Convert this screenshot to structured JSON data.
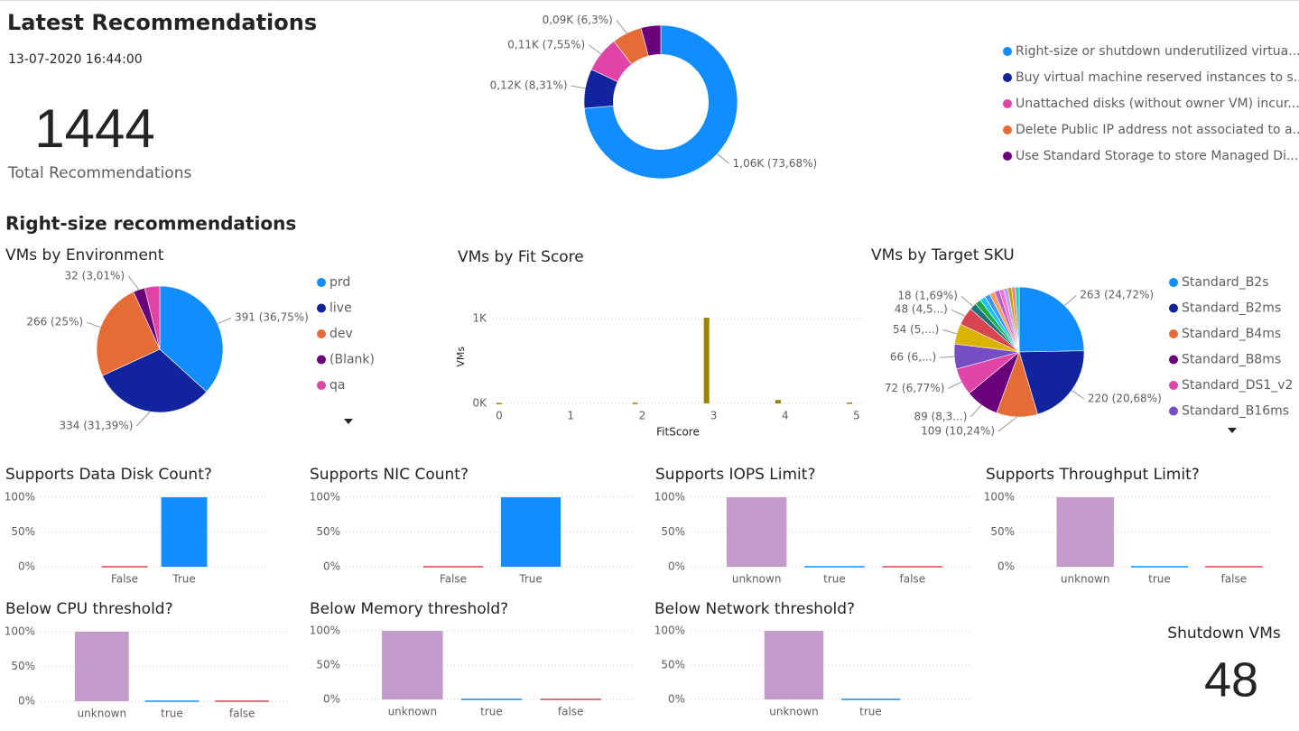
{
  "header": {
    "title": "Latest Recommendations",
    "timestamp": "13-07-2020 16:44:00",
    "section": "Right-size recommendations"
  },
  "cards": [
    {
      "value": "1444",
      "label": "Total Recommendations"
    },
    {
      "title": "Shutdown VMs",
      "value": "48"
    }
  ],
  "chart_data": [
    {
      "type": "pie",
      "hole": 0.62,
      "legend": "right",
      "categories": [
        "Right-size or shutdown underutilized virtua...",
        "Buy virtual machine reserved instances to s...",
        "Unattached disks (without owner VM) incur...",
        "Delete Public IP address not associated to a...",
        "Use Standard Storage to store Managed Di..."
      ],
      "values": [
        1064,
        120,
        109,
        91,
        60
      ],
      "value_labels": [
        "1,06K (73,68%)",
        "0,12K (8,31%)",
        "0,11K (7,55%)",
        "0,09K (6,3%)",
        null
      ],
      "colors": [
        "#118DFF",
        "#12239E",
        "#E044A7",
        "#E66C37",
        "#6B007B"
      ]
    },
    {
      "type": "pie",
      "title": "VMs by Environment",
      "legend": "right",
      "categories": [
        "prd",
        "live",
        "dev",
        "(Blank)",
        "qa"
      ],
      "values": [
        391,
        334,
        266,
        32,
        41
      ],
      "value_labels": [
        "391 (36,75%)",
        "334 (31,39%)",
        "266 (25%)",
        "32 (3,01%)",
        null
      ],
      "colors": [
        "#118DFF",
        "#12239E",
        "#E66C37",
        "#6B007B",
        "#E044A7"
      ]
    },
    {
      "type": "bar",
      "title": "VMs by Fit Score",
      "xlabel": "FitScore",
      "ylabel": "VMs",
      "x": [
        0,
        1.9,
        2.9,
        3.9,
        4.9
      ],
      "values": [
        5,
        8,
        1010,
        40,
        10
      ],
      "color": "#9C8100",
      "xlim": [
        0,
        5
      ],
      "xticks": [
        0,
        1,
        2,
        3,
        4,
        5
      ],
      "ylim": [
        0,
        1100
      ],
      "yticks": [
        {
          "value": 0,
          "label": "0K"
        },
        {
          "value": 1000,
          "label": "1K"
        }
      ],
      "grid": true
    },
    {
      "type": "pie",
      "title": "VMs by Target SKU",
      "legend": "right",
      "categories": [
        "Standard_B2s",
        "Standard_B2ms",
        "Standard_B4ms",
        "Standard_B8ms",
        "Standard_DS1_v2",
        "Standard_B16ms",
        null,
        null,
        null,
        null,
        null,
        null,
        null,
        null,
        null,
        null,
        null,
        null,
        null
      ],
      "values": [
        263,
        220,
        109,
        89,
        72,
        66,
        54,
        48,
        18,
        16,
        15,
        14,
        14,
        13,
        12,
        11,
        10,
        10,
        10
      ],
      "value_labels": [
        "263 (24,72%)",
        "220 (20,68%)",
        "109 (10,24%)",
        "89 (8,3...)",
        "72 (6,77%)",
        "66 (6,...)",
        "54 (5,...)",
        "48 (4,5...)",
        "18 (1,69%)",
        null,
        null,
        null,
        null,
        null,
        null,
        null,
        null,
        null,
        null
      ],
      "colors": [
        "#118DFF",
        "#12239E",
        "#E66C37",
        "#6B007B",
        "#E044A7",
        "#744EC2",
        "#D9B300",
        "#D64550",
        "#197278",
        "#1AAB40",
        "#15C6F4",
        "#4092FF",
        "#FFA058",
        "#BE5DC9",
        "#F472D0",
        "#B5A1FF",
        "#C4A200",
        "#FF8080",
        "#00DBBC"
      ]
    },
    {
      "type": "bar",
      "title": "Supports Data Disk Count?",
      "categories": [
        "False",
        "True"
      ],
      "values": [
        1,
        100
      ],
      "colors": [
        "#D64550",
        "#118DFF"
      ],
      "ylim": [
        0,
        100
      ],
      "yticks": [
        {
          "value": 0,
          "label": "0%"
        },
        {
          "value": 50,
          "label": "50%"
        },
        {
          "value": 100,
          "label": "100%"
        }
      ],
      "grid": true
    },
    {
      "type": "bar",
      "title": "Supports NIC Count?",
      "categories": [
        "False",
        "True"
      ],
      "values": [
        1,
        100
      ],
      "colors": [
        "#D64550",
        "#118DFF"
      ],
      "ylim": [
        0,
        100
      ],
      "yticks": [
        {
          "value": 0,
          "label": "0%"
        },
        {
          "value": 50,
          "label": "50%"
        },
        {
          "value": 100,
          "label": "100%"
        }
      ],
      "grid": true
    },
    {
      "type": "bar",
      "title": "Supports IOPS Limit?",
      "categories": [
        "unknown",
        "true",
        "false"
      ],
      "values": [
        100,
        1,
        1
      ],
      "colors": [
        "#C39BCB",
        "#118DFF",
        "#D64550"
      ],
      "ylim": [
        0,
        100
      ],
      "yticks": [
        {
          "value": 0,
          "label": "0%"
        },
        {
          "value": 50,
          "label": "50%"
        },
        {
          "value": 100,
          "label": "100%"
        }
      ],
      "grid": true
    },
    {
      "type": "bar",
      "title": "Supports Throughput Limit?",
      "categories": [
        "unknown",
        "true",
        "false"
      ],
      "values": [
        100,
        1,
        1
      ],
      "colors": [
        "#C39BCB",
        "#118DFF",
        "#D64550"
      ],
      "ylim": [
        0,
        100
      ],
      "yticks": [
        {
          "value": 0,
          "label": "0%"
        },
        {
          "value": 50,
          "label": "50%"
        },
        {
          "value": 100,
          "label": "100%"
        }
      ],
      "grid": true
    },
    {
      "type": "bar",
      "title": "Below CPU threshold?",
      "categories": [
        "unknown",
        "true",
        "false"
      ],
      "values": [
        100,
        1,
        1
      ],
      "colors": [
        "#C39BCB",
        "#118DFF",
        "#D64550"
      ],
      "ylim": [
        0,
        100
      ],
      "yticks": [
        {
          "value": 0,
          "label": "0%"
        },
        {
          "value": 50,
          "label": "50%"
        },
        {
          "value": 100,
          "label": "100%"
        }
      ],
      "grid": true
    },
    {
      "type": "bar",
      "title": "Below Memory threshold?",
      "categories": [
        "unknown",
        "true",
        "false"
      ],
      "values": [
        100,
        1,
        1
      ],
      "colors": [
        "#C39BCB",
        "#118DFF",
        "#D64550"
      ],
      "ylim": [
        0,
        100
      ],
      "yticks": [
        {
          "value": 0,
          "label": "0%"
        },
        {
          "value": 50,
          "label": "50%"
        },
        {
          "value": 100,
          "label": "100%"
        }
      ],
      "grid": true
    },
    {
      "type": "bar",
      "title": "Below Network threshold?",
      "categories": [
        "unknown",
        "true"
      ],
      "values": [
        100,
        1
      ],
      "colors": [
        "#C39BCB",
        "#118DFF"
      ],
      "ylim": [
        0,
        100
      ],
      "yticks": [
        {
          "value": 0,
          "label": "0%"
        },
        {
          "value": 50,
          "label": "50%"
        },
        {
          "value": 100,
          "label": "100%"
        }
      ],
      "grid": true
    }
  ]
}
